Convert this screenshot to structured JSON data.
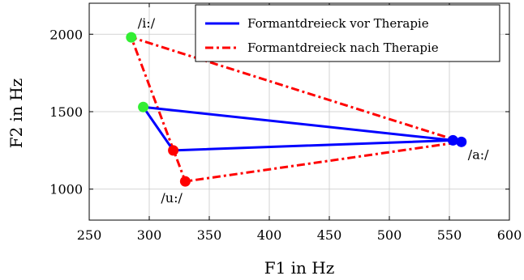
{
  "chart_data": {
    "type": "line",
    "xlabel": "F1 in Hz",
    "ylabel": "F2 in Hz",
    "xlim": [
      250,
      600
    ],
    "ylim": [
      800,
      2200
    ],
    "xticks": [
      250,
      300,
      350,
      400,
      450,
      500,
      550,
      600
    ],
    "yticks": [
      1000,
      1500,
      2000
    ],
    "grid": true,
    "legend_position": "top-right",
    "series": [
      {
        "name": "Formantdreieck vor Therapie",
        "color": "#0000ff",
        "style": "solid",
        "points": [
          {
            "vowel": "a",
            "x": 553,
            "y": 1315
          },
          {
            "vowel": "i",
            "x": 295,
            "y": 1530
          },
          {
            "vowel": "u",
            "x": 320,
            "y": 1250
          }
        ],
        "marker_colors": [
          "#0000ff",
          "#33ee33",
          "#ff0000"
        ]
      },
      {
        "name": "Formantdreieck nach Therapie",
        "color": "#ff0000",
        "style": "dash-dot",
        "points": [
          {
            "vowel": "a",
            "x": 560,
            "y": 1305
          },
          {
            "vowel": "i",
            "x": 285,
            "y": 1980
          },
          {
            "vowel": "u",
            "x": 330,
            "y": 1050
          }
        ],
        "marker_colors": [
          "#0000ff",
          "#33ee33",
          "#ff0000"
        ]
      }
    ],
    "vowel_labels": [
      {
        "text": "/i:/",
        "x": 285,
        "y": 1980
      },
      {
        "text": "/u:/",
        "x": 330,
        "y": 1050
      },
      {
        "text": "/a:/",
        "x": 560,
        "y": 1305
      }
    ]
  }
}
